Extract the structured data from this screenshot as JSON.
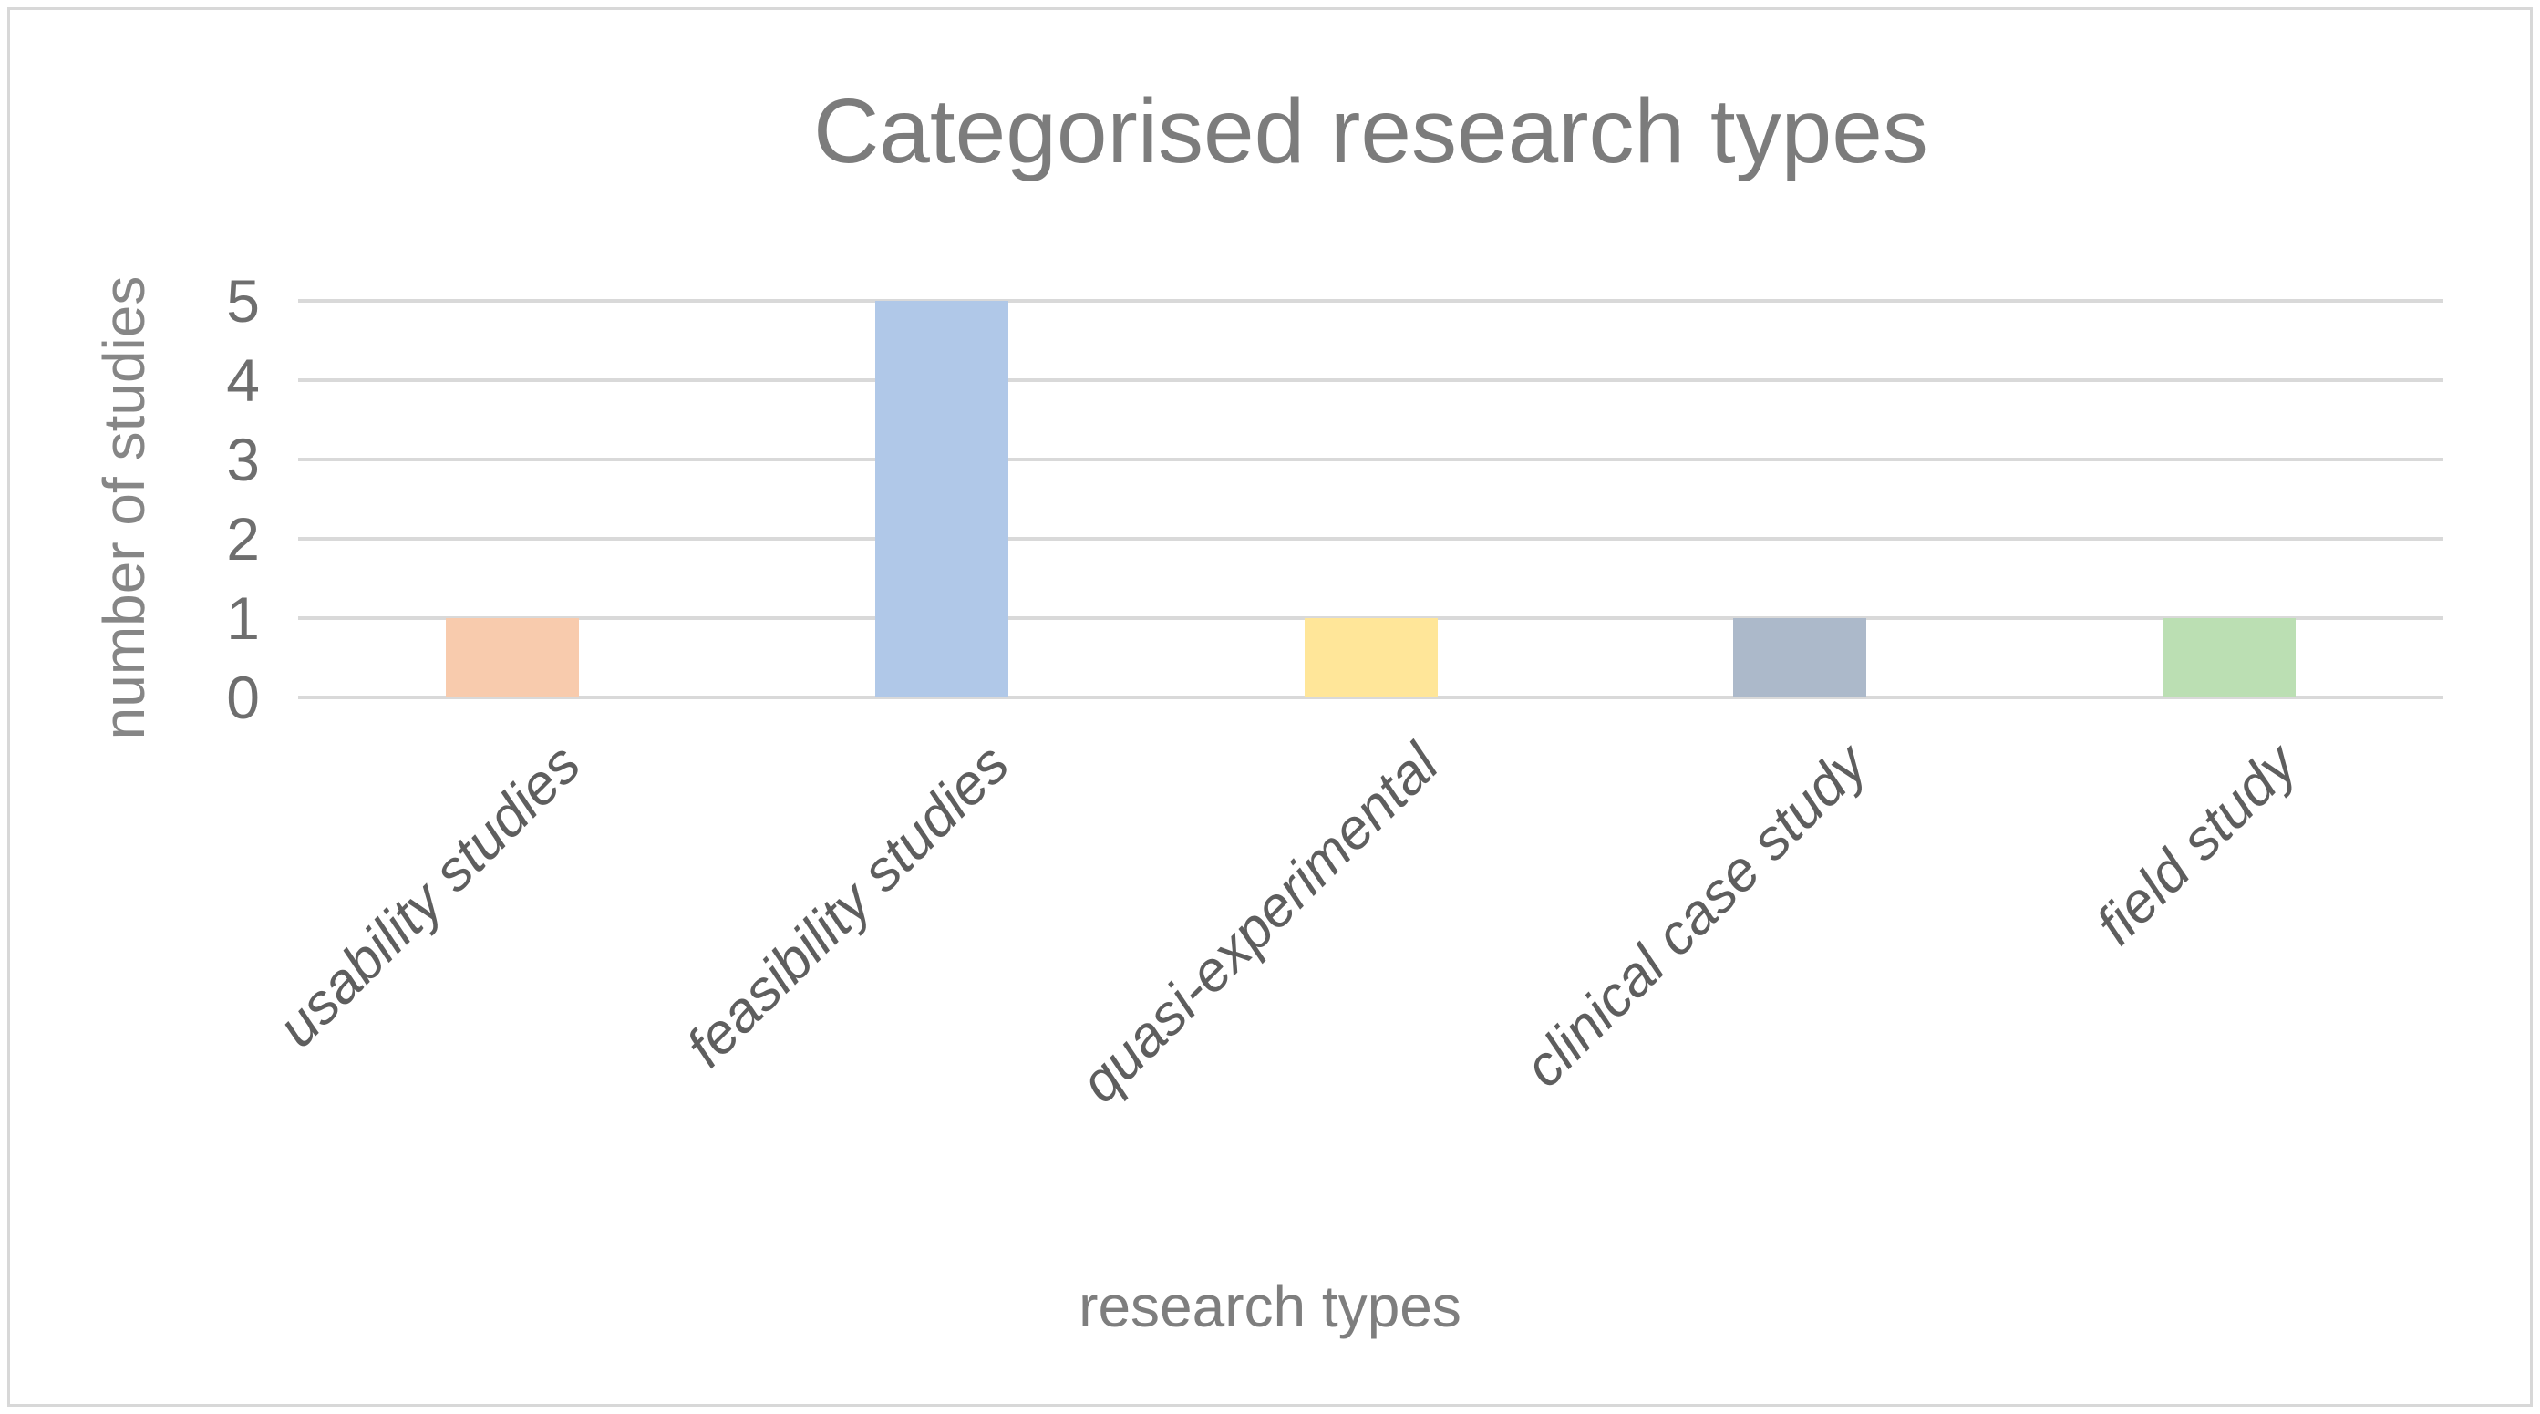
{
  "chart_data": {
    "type": "bar",
    "title": "Categorised research types",
    "xlabel": "research types",
    "ylabel": "number of studies",
    "categories": [
      "usability studies",
      "feasibility studies",
      "quasi-experimental",
      "clinical case study",
      "field study"
    ],
    "values": [
      1,
      5,
      1,
      1,
      1
    ],
    "bar_colors": [
      "#F8CBAD",
      "#B0C8E8",
      "#FFE699",
      "#ACB9CA",
      "#BBDFB3"
    ],
    "yticks": [
      0,
      1,
      2,
      3,
      4,
      5
    ],
    "ylim": [
      0,
      5
    ],
    "grid": true,
    "gridline_color": "#D9D9D9",
    "legend_position": "none"
  },
  "colors": {
    "background": "#FFFFFF",
    "frame_border": "#D8D8D8",
    "title_text": "#7C7C7C",
    "axis_title_text": "#7E7E7E",
    "tick_text": "#6E6E6E",
    "category_text": "#5E5E5E"
  }
}
